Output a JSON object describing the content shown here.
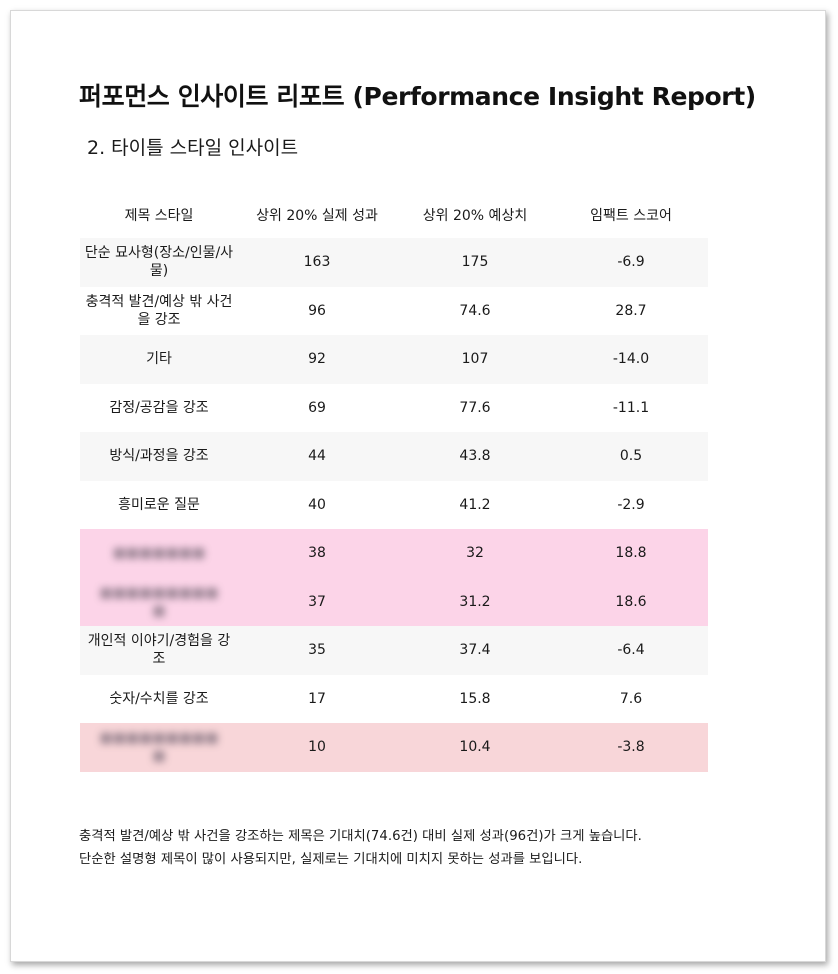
{
  "report": {
    "title": "퍼포먼스 인사이트 리포트 (Performance Insight Report)",
    "section_title": "2. 타이틀 스타일 인사이트"
  },
  "table": {
    "headers": [
      "제목 스타일",
      "상위 20% 실제 성과",
      "상위 20% 예상치",
      "임팩트 스코어"
    ],
    "rows": [
      {
        "style": "단순 묘사형(장소/인물/사물)",
        "actual": "163",
        "expected": "175",
        "impact": "-6.9",
        "highlight": "none"
      },
      {
        "style": "충격적 발견/예상 밖 사건을 강조",
        "actual": "96",
        "expected": "74.6",
        "impact": "28.7",
        "highlight": "none"
      },
      {
        "style": "기타",
        "actual": "92",
        "expected": "107",
        "impact": "-14.0",
        "highlight": "none"
      },
      {
        "style": "감정/공감을 강조",
        "actual": "69",
        "expected": "77.6",
        "impact": "-11.1",
        "highlight": "none"
      },
      {
        "style": "방식/과정을 강조",
        "actual": "44",
        "expected": "43.8",
        "impact": "0.5",
        "highlight": "none"
      },
      {
        "style": "흥미로운 질문",
        "actual": "40",
        "expected": "41.2",
        "impact": "-2.9",
        "highlight": "none"
      },
      {
        "style": "",
        "actual": "38",
        "expected": "32",
        "impact": "18.8",
        "highlight": "pink"
      },
      {
        "style": "",
        "actual": "37",
        "expected": "31.2",
        "impact": "18.6",
        "highlight": "pink"
      },
      {
        "style": "개인적 이야기/경험을 강조",
        "actual": "35",
        "expected": "37.4",
        "impact": "-6.4",
        "highlight": "none"
      },
      {
        "style": "숫자/수치를 강조",
        "actual": "17",
        "expected": "15.8",
        "impact": "7.6",
        "highlight": "none"
      },
      {
        "style": "",
        "actual": "10",
        "expected": "10.4",
        "impact": "-3.8",
        "highlight": "rose"
      }
    ]
  },
  "summary": {
    "line1": "충격적 발견/예상 밖 사건을 강조하는 제목은 기대치(74.6건) 대비 실제 성과(96건)가 크게 높습니다.",
    "line2": "단순한 설명형 제목이 많이 사용되지만, 실제로는 기대치에 미치지 못하는 성과를 보입니다."
  },
  "colors": {
    "highlight_pink": "#fcd4e8",
    "highlight_rose": "#f8d6d9",
    "row_alt": "#f7f7f7"
  }
}
